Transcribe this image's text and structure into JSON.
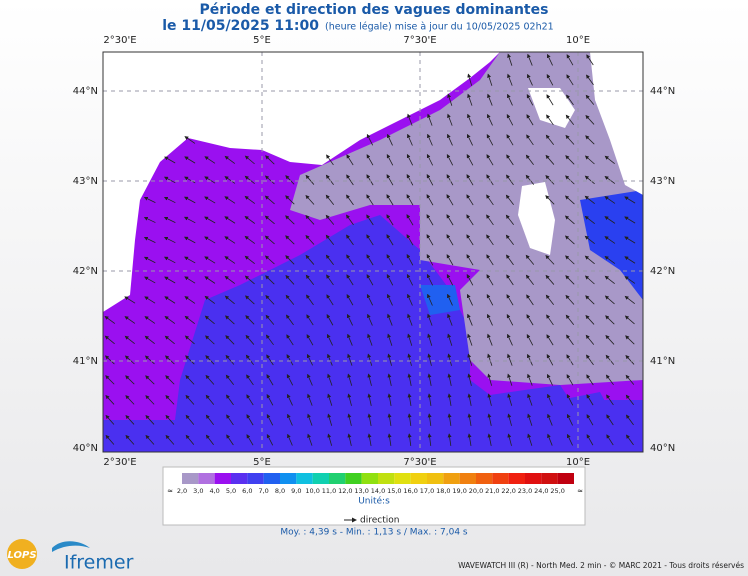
{
  "header": {
    "title": "Période et direction des vagues dominantes",
    "date": "le 11/05/2025 11:00",
    "note": "(heure légale) mise à jour du 10/05/2025 02h21"
  },
  "map": {
    "lon_labels": [
      "2°30'E",
      "5°E",
      "7°30'E",
      "10°E"
    ],
    "lat_labels": [
      "44°N",
      "43°N",
      "42°N",
      "41°N",
      "40°N"
    ]
  },
  "legend": {
    "start": "≈",
    "end": "≈",
    "labels": [
      "2,0",
      "3,0",
      "4,0",
      "5,0",
      "6,0",
      "7,0",
      "8,0",
      "9,0",
      "10,0",
      "11,0",
      "12,0",
      "13,0",
      "14,0",
      "15,0",
      "16,0",
      "17,0",
      "18,0",
      "19,0",
      "20,0",
      "21,0",
      "22,0",
      "23,0",
      "24,0",
      "25,0"
    ],
    "colors": [
      "#a898c8",
      "#b070e0",
      "#9a10f0",
      "#5a30f0",
      "#4040f0",
      "#2060f0",
      "#1090f0",
      "#10c0e0",
      "#10d0b0",
      "#20d070",
      "#40d020",
      "#90e010",
      "#c0e010",
      "#e0e010",
      "#f0d010",
      "#f0c010",
      "#f0a010",
      "#f08010",
      "#f06010",
      "#f04010",
      "#f02010",
      "#e01010",
      "#d01010",
      "#c00010"
    ],
    "unit": "Unité:s",
    "direction": "direction"
  },
  "stats": "Moy. : 4,39 s  -  Min. : 1,13 s / Max. : 7,04 s",
  "footer": {
    "credit": "WAVEWATCH III (R) - North Med. 2 min - © MARC 2021 - Tous droits réservés",
    "logo1": "LOPS",
    "logo2": "Ifremer"
  }
}
